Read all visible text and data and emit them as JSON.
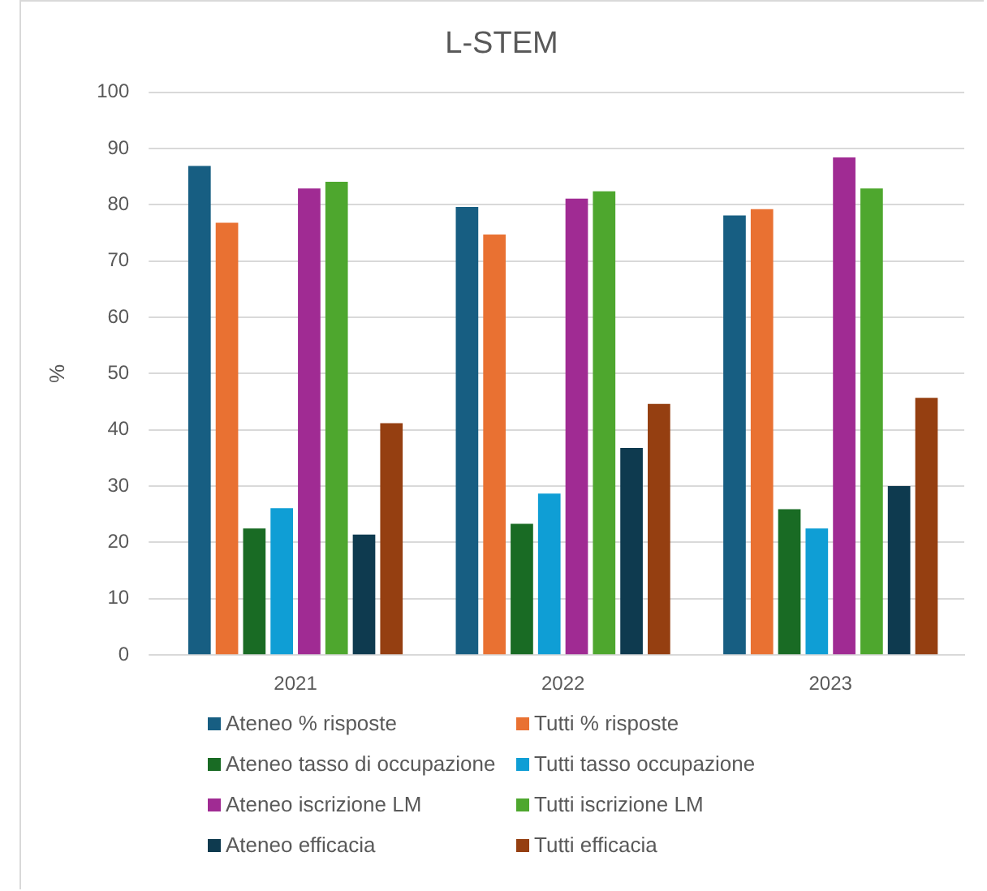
{
  "chart_data": {
    "type": "bar",
    "title": "L-STEM",
    "ylabel": "%",
    "categories": [
      "2021",
      "2022",
      "2023"
    ],
    "series": [
      {
        "name": "Ateneo % risposte",
        "color": "#175e82",
        "values": [
          86.9,
          79.6,
          78.1
        ]
      },
      {
        "name": "Tutti % risposte",
        "color": "#e97132",
        "values": [
          76.8,
          74.7,
          79.2
        ]
      },
      {
        "name": "Ateneo tasso di occupazione",
        "color": "#196b24",
        "values": [
          22.5,
          23.3,
          25.9
        ]
      },
      {
        "name": "Tutti tasso occupazione",
        "color": "#0f9ed5",
        "values": [
          26.1,
          28.7,
          22.5
        ]
      },
      {
        "name": "Ateneo iscrizione LM",
        "color": "#a02b93",
        "values": [
          82.9,
          81.1,
          88.4
        ]
      },
      {
        "name": "Tutti iscrizione LM",
        "color": "#4ea72e",
        "values": [
          84.1,
          82.4,
          82.9
        ]
      },
      {
        "name": "Ateneo efficacia",
        "color": "#0e3a4f",
        "values": [
          21.4,
          36.8,
          30.0
        ]
      },
      {
        "name": "Tutti efficacia",
        "color": "#953f11",
        "values": [
          41.2,
          44.6,
          45.7
        ]
      }
    ],
    "ylim": [
      0,
      100
    ],
    "yticks": [
      0,
      10,
      20,
      30,
      40,
      50,
      60,
      70,
      80,
      90,
      100
    ],
    "grid": "y",
    "legend": "bottom"
  }
}
